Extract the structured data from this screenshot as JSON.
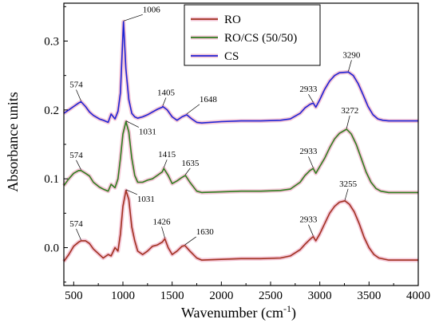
{
  "chart_data": {
    "type": "line",
    "xlabel": "Wavenumber (cm",
    "xlabel_sup": "-1",
    "xlabel_end": ")",
    "ylabel": "Absorbance units",
    "xlim": [
      400,
      4000
    ],
    "ylim": [
      -0.055,
      0.355
    ],
    "xticks": [
      500,
      1000,
      1500,
      2000,
      2500,
      3000,
      3500,
      4000
    ],
    "yticks": [
      0.0,
      0.1,
      0.2,
      0.3
    ],
    "ytick_labels": [
      "0.0",
      "0.1",
      "0.2",
      "0.3"
    ],
    "grid": false,
    "legend_position": "top-center",
    "series": [
      {
        "name": "RO",
        "color": "#a0301f",
        "x": [
          400,
          450,
          500,
          550,
          574,
          620,
          660,
          700,
          760,
          800,
          850,
          880,
          920,
          950,
          975,
          1000,
          1031,
          1060,
          1090,
          1120,
          1150,
          1200,
          1250,
          1300,
          1350,
          1400,
          1426,
          1460,
          1500,
          1550,
          1600,
          1630,
          1680,
          1750,
          1800,
          2000,
          2200,
          2400,
          2600,
          2700,
          2800,
          2850,
          2900,
          2933,
          2960,
          3000,
          3050,
          3100,
          3150,
          3200,
          3255,
          3300,
          3350,
          3400,
          3450,
          3500,
          3550,
          3600,
          3700,
          3800,
          4000
        ],
        "y": [
          -0.02,
          -0.01,
          0.002,
          0.008,
          0.01,
          0.01,
          0.006,
          -0.002,
          -0.01,
          -0.015,
          -0.01,
          -0.012,
          0.0,
          -0.005,
          0.02,
          0.06,
          0.083,
          0.07,
          0.03,
          0.01,
          -0.005,
          -0.01,
          -0.005,
          0.002,
          0.004,
          0.008,
          0.013,
          0.0,
          -0.01,
          -0.005,
          0.002,
          0.003,
          -0.005,
          -0.015,
          -0.018,
          -0.017,
          -0.016,
          -0.016,
          -0.015,
          -0.012,
          -0.003,
          0.005,
          0.012,
          0.016,
          0.01,
          0.02,
          0.035,
          0.05,
          0.06,
          0.066,
          0.068,
          0.063,
          0.052,
          0.035,
          0.015,
          0.0,
          -0.01,
          -0.015,
          -0.018,
          -0.018,
          -0.018
        ]
      },
      {
        "name": "RO/CS (50/50)",
        "color": "#2e7d1e",
        "x": [
          400,
          450,
          500,
          550,
          574,
          620,
          660,
          700,
          760,
          800,
          850,
          880,
          920,
          950,
          975,
          1000,
          1031,
          1060,
          1090,
          1120,
          1150,
          1200,
          1250,
          1300,
          1350,
          1400,
          1415,
          1460,
          1500,
          1550,
          1600,
          1635,
          1680,
          1750,
          1800,
          2000,
          2200,
          2400,
          2600,
          2700,
          2800,
          2850,
          2900,
          2933,
          2960,
          3000,
          3050,
          3100,
          3150,
          3200,
          3272,
          3320,
          3370,
          3420,
          3470,
          3520,
          3570,
          3620,
          3700,
          3800,
          4000
        ],
        "y": [
          0.09,
          0.1,
          0.108,
          0.112,
          0.112,
          0.108,
          0.104,
          0.095,
          0.088,
          0.085,
          0.082,
          0.092,
          0.087,
          0.1,
          0.13,
          0.165,
          0.183,
          0.168,
          0.13,
          0.105,
          0.095,
          0.095,
          0.098,
          0.1,
          0.105,
          0.11,
          0.115,
          0.105,
          0.093,
          0.097,
          0.102,
          0.105,
          0.095,
          0.082,
          0.08,
          0.081,
          0.082,
          0.082,
          0.083,
          0.085,
          0.095,
          0.105,
          0.112,
          0.115,
          0.108,
          0.118,
          0.13,
          0.145,
          0.158,
          0.166,
          0.172,
          0.165,
          0.15,
          0.13,
          0.11,
          0.095,
          0.086,
          0.082,
          0.08,
          0.08,
          0.08
        ]
      },
      {
        "name": "CS",
        "color": "#1f22d4",
        "x": [
          400,
          450,
          500,
          550,
          574,
          620,
          660,
          700,
          760,
          800,
          850,
          880,
          920,
          950,
          975,
          1006,
          1030,
          1060,
          1090,
          1120,
          1150,
          1200,
          1250,
          1300,
          1350,
          1400,
          1405,
          1450,
          1500,
          1550,
          1600,
          1648,
          1700,
          1750,
          1800,
          2000,
          2200,
          2400,
          2600,
          2700,
          2800,
          2850,
          2900,
          2933,
          2960,
          3000,
          3050,
          3100,
          3150,
          3200,
          3290,
          3340,
          3390,
          3440,
          3490,
          3540,
          3590,
          3640,
          3700,
          3800,
          4000
        ],
        "y": [
          0.195,
          0.2,
          0.205,
          0.21,
          0.212,
          0.205,
          0.197,
          0.192,
          0.187,
          0.185,
          0.182,
          0.194,
          0.187,
          0.198,
          0.225,
          0.328,
          0.26,
          0.215,
          0.195,
          0.19,
          0.188,
          0.19,
          0.193,
          0.197,
          0.201,
          0.204,
          0.205,
          0.2,
          0.19,
          0.185,
          0.19,
          0.193,
          0.187,
          0.182,
          0.181,
          0.183,
          0.184,
          0.184,
          0.185,
          0.187,
          0.195,
          0.203,
          0.208,
          0.21,
          0.204,
          0.215,
          0.23,
          0.242,
          0.25,
          0.254,
          0.255,
          0.25,
          0.238,
          0.222,
          0.205,
          0.193,
          0.187,
          0.185,
          0.184,
          0.184,
          0.184
        ]
      }
    ],
    "annotations": [
      {
        "series": "CS",
        "text": "574",
        "x": 574,
        "y": 0.212
      },
      {
        "series": "CS",
        "text": "1006",
        "x": 1006,
        "y": 0.328
      },
      {
        "series": "CS",
        "text": "1405",
        "x": 1405,
        "y": 0.205
      },
      {
        "series": "CS",
        "text": "1648",
        "x": 1648,
        "y": 0.193
      },
      {
        "series": "CS",
        "text": "2933",
        "x": 2933,
        "y": 0.21
      },
      {
        "series": "CS",
        "text": "3290",
        "x": 3290,
        "y": 0.255
      },
      {
        "series": "RO/CS (50/50)",
        "text": "574",
        "x": 574,
        "y": 0.112
      },
      {
        "series": "RO/CS (50/50)",
        "text": "1031",
        "x": 1031,
        "y": 0.183
      },
      {
        "series": "RO/CS (50/50)",
        "text": "1415",
        "x": 1415,
        "y": 0.115
      },
      {
        "series": "RO/CS (50/50)",
        "text": "1635",
        "x": 1635,
        "y": 0.105
      },
      {
        "series": "RO/CS (50/50)",
        "text": "2933",
        "x": 2933,
        "y": 0.115
      },
      {
        "series": "RO/CS (50/50)",
        "text": "3272",
        "x": 3272,
        "y": 0.172
      },
      {
        "series": "RO",
        "text": "574",
        "x": 574,
        "y": 0.01
      },
      {
        "series": "RO",
        "text": "1031",
        "x": 1031,
        "y": 0.083
      },
      {
        "series": "RO",
        "text": "1426",
        "x": 1426,
        "y": 0.013
      },
      {
        "series": "RO",
        "text": "1630",
        "x": 1630,
        "y": 0.003
      },
      {
        "series": "RO",
        "text": "2933",
        "x": 2933,
        "y": 0.016
      },
      {
        "series": "RO",
        "text": "3255",
        "x": 3255,
        "y": 0.068
      }
    ]
  }
}
